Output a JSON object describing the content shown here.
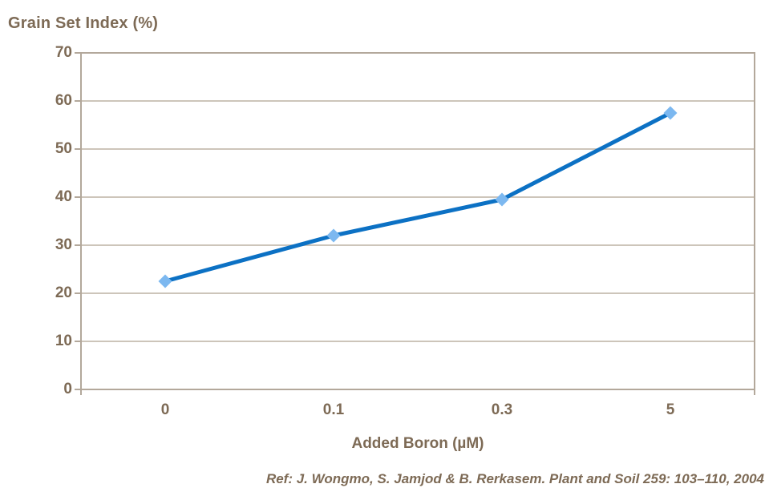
{
  "chart_data": {
    "type": "line",
    "title": "Grain Set Index (%)",
    "xlabel": "Added Boron (µM)",
    "ylabel": "",
    "categories": [
      "0",
      "0.1",
      "0.3",
      "5"
    ],
    "values": [
      22.5,
      32,
      39.5,
      57.5
    ],
    "ylim": [
      0,
      70
    ],
    "ytick_step": 10,
    "grid": "horizontal",
    "legend_position": "none",
    "marker_shape": "diamond",
    "colors": {
      "line": "#0C71C4",
      "marker": "#7CB8F0",
      "text": "#7D6A55",
      "gridline": "#C6BDB1",
      "border": "#B3A89B",
      "background": "#FFFFFF"
    }
  },
  "footer": {
    "reference": "Ref: J. Wongmo, S. Jamjod & B. Rerkasem. Plant and Soil 259: 103–110, 2004"
  }
}
